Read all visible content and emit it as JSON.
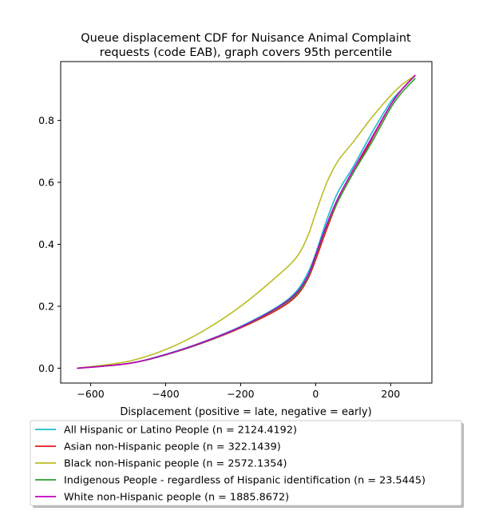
{
  "chart_data": {
    "type": "line",
    "title_lines": [
      "Queue displacement CDF for Nuisance Animal Complaint",
      "requests (code EAB), graph covers 95th percentile"
    ],
    "xlabel": "Displacement (positive = late, negative = early)",
    "ylabel": "",
    "xlim": [
      -680,
      310
    ],
    "ylim": [
      -0.048,
      0.99
    ],
    "x_ticks": [
      -600,
      -400,
      -200,
      0,
      200
    ],
    "x_tick_labels": [
      "−600",
      "−400",
      "−200",
      "0",
      "200"
    ],
    "y_ticks": [
      0.0,
      0.2,
      0.4,
      0.6,
      0.8
    ],
    "y_tick_labels": [
      "0.0",
      "0.2",
      "0.4",
      "0.6",
      "0.8"
    ],
    "grid": false,
    "legend_position": "below",
    "series": [
      {
        "name": "All Hispanic or Latino People (n = 2124.4192)",
        "color": "#17becf",
        "x": [
          -635,
          -500,
          -400,
          -300,
          -200,
          -100,
          -50,
          -20,
          0,
          30,
          60,
          100,
          150,
          200,
          230,
          265
        ],
        "y": [
          0.0,
          0.015,
          0.045,
          0.085,
          0.135,
          0.2,
          0.25,
          0.31,
          0.37,
          0.48,
          0.57,
          0.65,
          0.76,
          0.86,
          0.9,
          0.945
        ]
      },
      {
        "name": "Asian non-Hispanic people (n = 322.1439)",
        "color": "#e31a1c",
        "x": [
          -635,
          -500,
          -400,
          -300,
          -200,
          -100,
          -50,
          -20,
          0,
          30,
          60,
          100,
          150,
          200,
          230,
          265
        ],
        "y": [
          0.0,
          0.015,
          0.043,
          0.082,
          0.13,
          0.19,
          0.235,
          0.29,
          0.35,
          0.45,
          0.54,
          0.63,
          0.74,
          0.85,
          0.9,
          0.945
        ]
      },
      {
        "name": "Black non-Hispanic people (n = 2572.1354)",
        "color": "#bcbd22",
        "x": [
          -635,
          -500,
          -400,
          -300,
          -200,
          -100,
          -50,
          -20,
          0,
          30,
          60,
          100,
          150,
          200,
          230,
          265
        ],
        "y": [
          0.0,
          0.022,
          0.06,
          0.12,
          0.2,
          0.3,
          0.36,
          0.43,
          0.5,
          0.6,
          0.67,
          0.73,
          0.81,
          0.88,
          0.915,
          0.945
        ]
      },
      {
        "name": "Indigenous People - regardless of Hispanic identification (n = 23.5445)",
        "color": "#2ca02c",
        "x": [
          -635,
          -500,
          -400,
          -300,
          -200,
          -100,
          -50,
          -20,
          0,
          30,
          60,
          100,
          150,
          200,
          230,
          265
        ],
        "y": [
          0.0,
          0.015,
          0.043,
          0.083,
          0.132,
          0.195,
          0.24,
          0.295,
          0.36,
          0.46,
          0.54,
          0.63,
          0.73,
          0.84,
          0.89,
          0.935
        ]
      },
      {
        "name": "White non-Hispanic people (n = 1885.8672)",
        "color": "#bf00bf",
        "x": [
          -635,
          -500,
          -400,
          -300,
          -200,
          -100,
          -50,
          -20,
          0,
          30,
          60,
          100,
          150,
          200,
          230,
          265
        ],
        "y": [
          0.0,
          0.015,
          0.044,
          0.084,
          0.133,
          0.197,
          0.245,
          0.3,
          0.365,
          0.465,
          0.55,
          0.64,
          0.745,
          0.85,
          0.9,
          0.945
        ]
      }
    ]
  }
}
